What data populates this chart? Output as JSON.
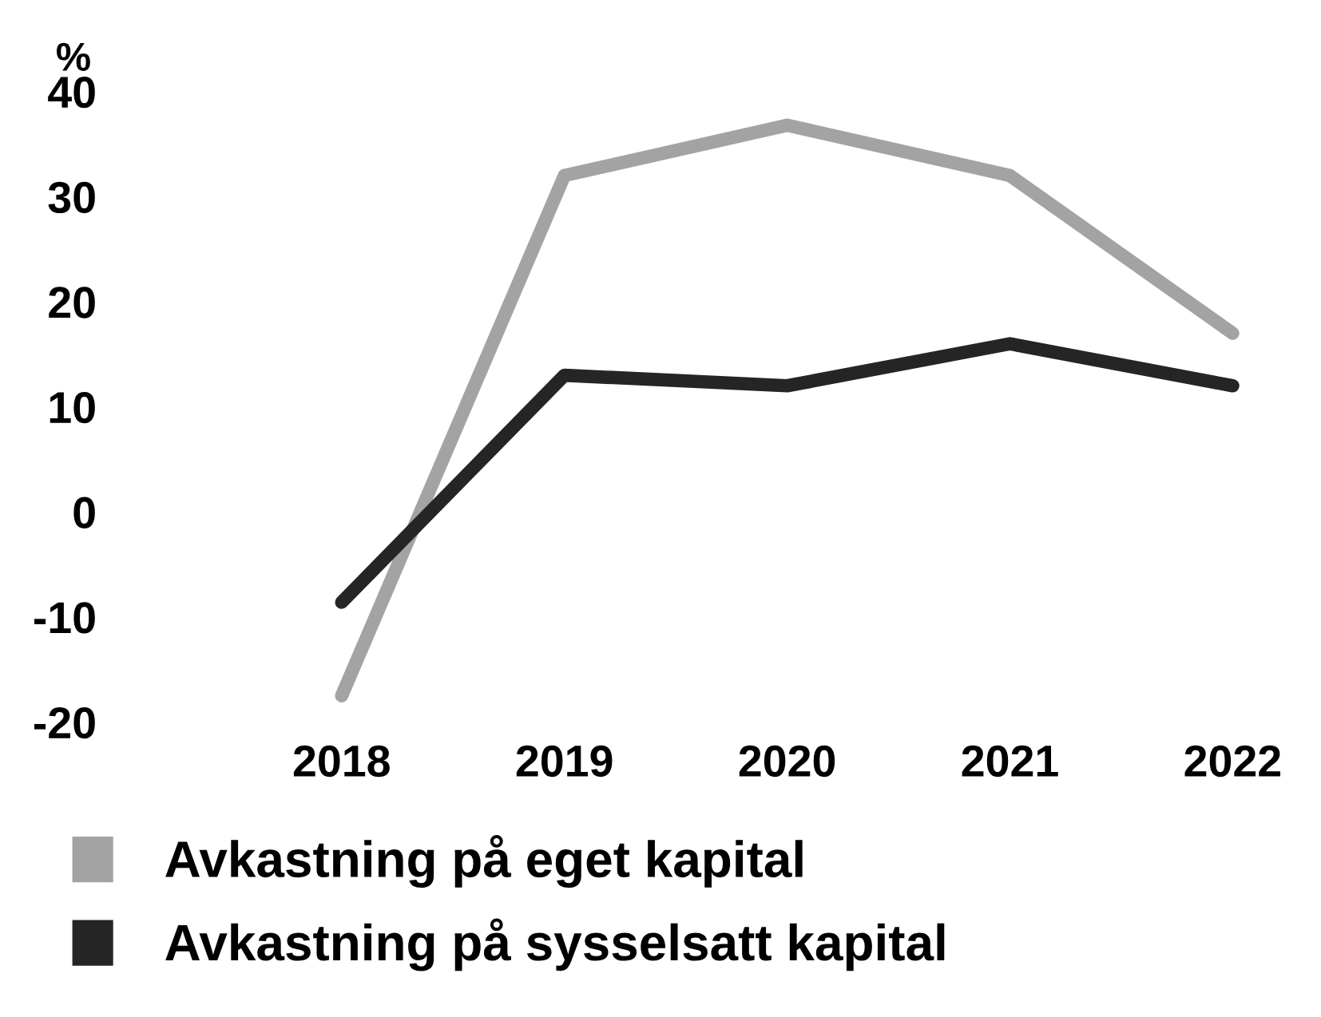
{
  "chart_data": {
    "type": "line",
    "ylabel": "%",
    "categories": [
      "2018",
      "2019",
      "2020",
      "2021",
      "2022"
    ],
    "series": [
      {
        "name": "Avkastning på eget kapital",
        "color": "#a3a3a3",
        "values": [
          -17.5,
          32,
          36.8,
          32,
          17
        ]
      },
      {
        "name": "Avkastning på sysselsatt kapital",
        "color": "#252525",
        "values": [
          -8.6,
          13,
          12,
          16,
          12
        ]
      }
    ],
    "ylim": [
      -20,
      40
    ],
    "yticks": [
      -20,
      -10,
      0,
      10,
      20,
      30,
      40
    ],
    "grid": false,
    "legend": "bottom",
    "line_style": "solid"
  }
}
